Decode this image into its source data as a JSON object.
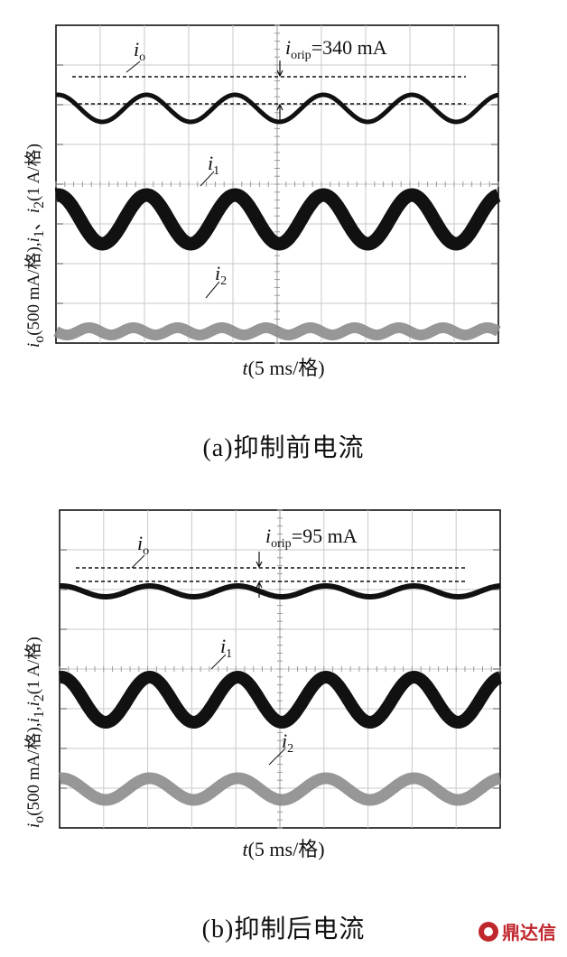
{
  "chart_data": [
    {
      "type": "line",
      "panel": "a",
      "caption": "(a)抑制前电流",
      "xlabel": "t(5 ms/格)",
      "ylabel": "io(500 mA/格),i1、i2(1 A/格)",
      "grid": true,
      "x_divisions": 10,
      "y_divisions": 8,
      "annotation": "iorip=340 mA",
      "series": [
        {
          "name": "io",
          "waveform": "sinusoid",
          "ripple_pp_mA": 340,
          "cycles": 5,
          "color": "#111111"
        },
        {
          "name": "i1",
          "waveform": "sinusoid",
          "cycles": 5,
          "color": "#111111"
        },
        {
          "name": "i2",
          "waveform": "flat-ripple",
          "cycles": 5,
          "color": "#8c8c8c"
        }
      ]
    },
    {
      "type": "line",
      "panel": "b",
      "caption": "(b)抑制后电流",
      "xlabel": "t(5 ms/格)",
      "ylabel": "io(500 mA/格),i1,i2(1 A/格)",
      "grid": true,
      "x_divisions": 10,
      "y_divisions": 8,
      "annotation": "iorip=95 mA",
      "series": [
        {
          "name": "io",
          "waveform": "sinusoid",
          "ripple_pp_mA": 95,
          "cycles": 5,
          "color": "#111111"
        },
        {
          "name": "i1",
          "waveform": "sinusoid",
          "cycles": 5,
          "color": "#111111"
        },
        {
          "name": "i2",
          "waveform": "sinusoid",
          "cycles": 5,
          "color": "#8c8c8c"
        }
      ]
    }
  ],
  "labels": {
    "a": {
      "caption": "(a)抑制前电流",
      "x_var": "t",
      "x_unit": "(5 ms/格)",
      "y_prefix": "i",
      "y_sub_o": "o",
      "y_mid": "(500 mA/格),",
      "y_mid2": "、",
      "y_tail": "(1 A/格)",
      "io": "i",
      "io_sub": "o",
      "i1": "i",
      "i1_sub": "1",
      "i2": "i",
      "i2_sub": "2",
      "rip": "i",
      "rip_sub": "orip",
      "rip_val": "=340 mA"
    },
    "b": {
      "caption": "(b)抑制后电流",
      "x_var": "t",
      "x_unit": "(5 ms/格)",
      "y_prefix": "i",
      "y_sub_o": "o",
      "y_mid": "(500 mA/格),",
      "y_mid2": ",",
      "y_tail": "(1 A/格)",
      "io": "i",
      "io_sub": "o",
      "i1": "i",
      "i1_sub": "1",
      "i2": "i",
      "i2_sub": "2",
      "rip": "i",
      "rip_sub": "orip",
      "rip_val": "=95 mA"
    }
  },
  "watermark": "鼎达信"
}
